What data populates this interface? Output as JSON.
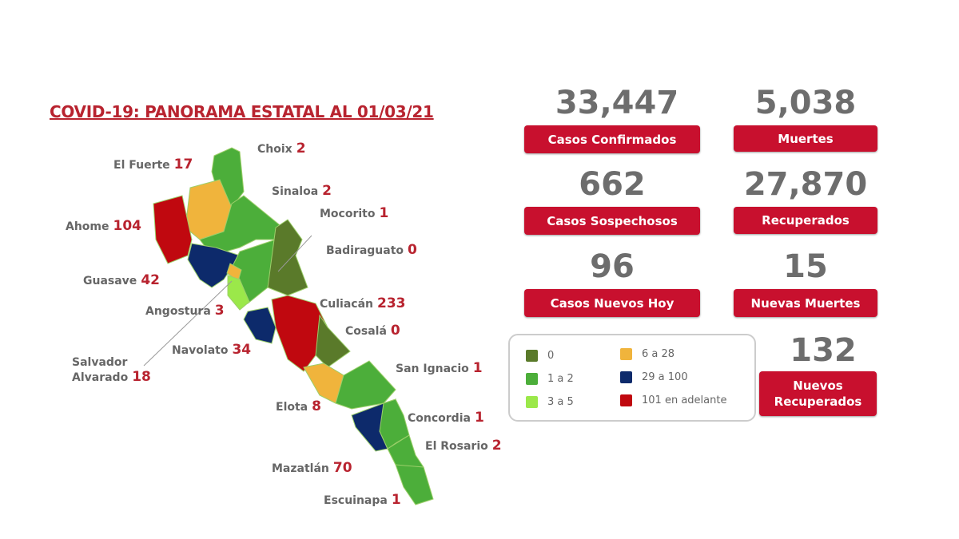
{
  "title": "COVID-19: PANORAMA ESTATAL AL 01/03/21",
  "colors": {
    "cero": "#5a7a2a",
    "uno_dos": "#4cae3a",
    "tres_cinco": "#9be84a",
    "seis_28": "#f0b43c",
    "v29_100": "#0d2a6b",
    "v101": "#c0080f",
    "accent": "#c8102e"
  },
  "municipios": [
    {
      "name": "Choix",
      "value": "2",
      "color": "#4cae3a"
    },
    {
      "name": "El Fuerte",
      "value": "17",
      "color": "#f0b43c"
    },
    {
      "name": "Sinaloa",
      "value": "2",
      "color": "#4cae3a"
    },
    {
      "name": "Mocorito",
      "value": "1",
      "color": "#4cae3a"
    },
    {
      "name": "Ahome",
      "value": "104",
      "color": "#c0080f"
    },
    {
      "name": "Badiraguato",
      "value": "0",
      "color": "#5a7a2a"
    },
    {
      "name": "Guasave",
      "value": "42",
      "color": "#0d2a6b"
    },
    {
      "name": "Angostura",
      "value": "3",
      "color": "#9be84a"
    },
    {
      "name": "Culiacán",
      "value": "233",
      "color": "#c0080f"
    },
    {
      "name": "Cosalá",
      "value": "0",
      "color": "#5a7a2a"
    },
    {
      "name": "Navolato",
      "value": "34",
      "color": "#0d2a6b"
    },
    {
      "name": "Salvador Alvarado",
      "value": "18",
      "color": "#f0b43c"
    },
    {
      "name": "San Ignacio",
      "value": "1",
      "color": "#4cae3a"
    },
    {
      "name": "Elota",
      "value": "8",
      "color": "#f0b43c"
    },
    {
      "name": "Concordia",
      "value": "1",
      "color": "#4cae3a"
    },
    {
      "name": "El Rosario",
      "value": "2",
      "color": "#4cae3a"
    },
    {
      "name": "Mazatlán",
      "value": "70",
      "color": "#0d2a6b"
    },
    {
      "name": "Escuinapa",
      "value": "1",
      "color": "#4cae3a"
    }
  ],
  "salvador_lines": [
    "Salvador",
    "Alvarado"
  ],
  "stats": {
    "confirmados": {
      "value": "33,447",
      "label": "Casos Confirmados"
    },
    "muertes": {
      "value": "5,038",
      "label": "Muertes"
    },
    "sospechosos": {
      "value": "662",
      "label": "Casos Sospechosos"
    },
    "recuperados": {
      "value": "27,870",
      "label": "Recuperados"
    },
    "nuevos_hoy": {
      "value": "96",
      "label": "Casos Nuevos Hoy"
    },
    "nuevas_muertes": {
      "value": "15",
      "label": "Nuevas Muertes"
    },
    "nuevos_recuperados": {
      "value": "132",
      "label_1": "Nuevos",
      "label_2": "Recuperados"
    }
  },
  "legend": [
    {
      "label": "0",
      "color": "#5a7a2a"
    },
    {
      "label": "1 a 2",
      "color": "#4cae3a"
    },
    {
      "label": "3 a 5",
      "color": "#9be84a"
    },
    {
      "label": "6 a 28",
      "color": "#f0b43c"
    },
    {
      "label": "29 a 100",
      "color": "#0d2a6b"
    },
    {
      "label": "101 en adelante",
      "color": "#c0080f"
    }
  ]
}
